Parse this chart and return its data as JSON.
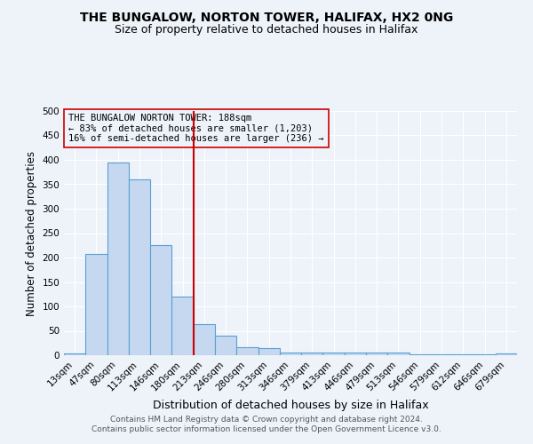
{
  "title": "THE BUNGALOW, NORTON TOWER, HALIFAX, HX2 0NG",
  "subtitle": "Size of property relative to detached houses in Halifax",
  "xlabel": "Distribution of detached houses by size in Halifax",
  "ylabel": "Number of detached properties",
  "categories": [
    "13sqm",
    "47sqm",
    "80sqm",
    "113sqm",
    "146sqm",
    "180sqm",
    "213sqm",
    "246sqm",
    "280sqm",
    "313sqm",
    "346sqm",
    "379sqm",
    "413sqm",
    "446sqm",
    "479sqm",
    "513sqm",
    "546sqm",
    "579sqm",
    "612sqm",
    "646sqm",
    "679sqm"
  ],
  "values": [
    3,
    207,
    395,
    360,
    225,
    120,
    63,
    40,
    16,
    15,
    6,
    6,
    5,
    5,
    5,
    6,
    1,
    1,
    1,
    1,
    3
  ],
  "bar_color": "#c5d8f0",
  "bar_edge_color": "#5a9fd4",
  "background_color": "#eef3fa",
  "grid_color": "#ffffff",
  "red_line_x": 5.5,
  "red_line_color": "#cc0000",
  "annotation_text": "THE BUNGALOW NORTON TOWER: 188sqm\n← 83% of detached houses are smaller (1,203)\n16% of semi-detached houses are larger (236) →",
  "annotation_box_edge": "#cc0000",
  "footer_line1": "Contains HM Land Registry data © Crown copyright and database right 2024.",
  "footer_line2": "Contains public sector information licensed under the Open Government Licence v3.0.",
  "ylim": [
    0,
    500
  ],
  "yticks": [
    0,
    50,
    100,
    150,
    200,
    250,
    300,
    350,
    400,
    450,
    500
  ],
  "title_fontsize": 10,
  "subtitle_fontsize": 9,
  "xlabel_fontsize": 9,
  "ylabel_fontsize": 8.5,
  "tick_fontsize": 7.5,
  "annotation_fontsize": 7.5,
  "footer_fontsize": 6.5
}
